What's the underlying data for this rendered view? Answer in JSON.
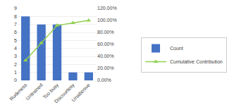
{
  "chart_data": {
    "type": "bar",
    "categories": [
      "Rudeness",
      "Untrained",
      "Too busy",
      "Discourtesy",
      "Unattenive"
    ],
    "series": [
      {
        "name": "Count",
        "type": "bar",
        "color": "#4472C4",
        "values": [
          8,
          7,
          7,
          1,
          1
        ]
      },
      {
        "name": "Cumulative Contribution",
        "type": "line",
        "color": "#92D050",
        "marker": "triangle-up",
        "axis": "y2",
        "values": [
          0.3333,
          0.625,
          0.9167,
          0.9583,
          1.0
        ]
      }
    ],
    "ylim": [
      0,
      9
    ],
    "yticks": [
      0,
      1,
      2,
      3,
      4,
      5,
      6,
      7,
      8,
      9
    ],
    "y2lim": [
      0,
      1.2
    ],
    "y2ticks": [
      {
        "value": 0.0,
        "label": "0.00%"
      },
      {
        "value": 0.2,
        "label": "20.00%"
      },
      {
        "value": 0.4,
        "label": "40.00%"
      },
      {
        "value": 0.6,
        "label": "60.00%"
      },
      {
        "value": 0.8,
        "label": "80.00%"
      },
      {
        "value": 1.0,
        "label": "100.00%"
      },
      {
        "value": 1.2,
        "label": "120.00%"
      }
    ],
    "grid": true,
    "legend": "right"
  }
}
